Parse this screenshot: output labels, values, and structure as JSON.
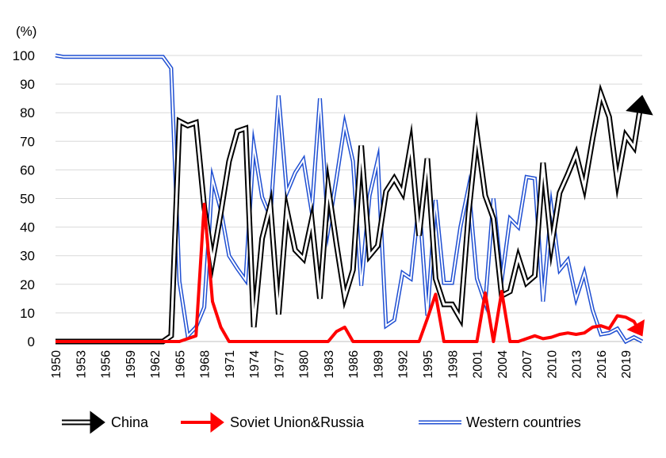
{
  "chart_data": {
    "type": "line",
    "unit_label": "(%)",
    "ylim": [
      0,
      100
    ],
    "y_ticks": [
      0,
      10,
      20,
      30,
      40,
      50,
      60,
      70,
      80,
      90,
      100
    ],
    "x_tick_labels": [
      "1950",
      "1953",
      "1956",
      "1959",
      "1962",
      "1965",
      "1968",
      "1971",
      "1974",
      "1977",
      "1980",
      "1983",
      "1986",
      "1989",
      "1992",
      "1995",
      "1998",
      "2001",
      "2004",
      "2007",
      "2010",
      "2013",
      "2016",
      "2019"
    ],
    "grid": true,
    "legend_position": "bottom",
    "x": [
      1950,
      1951,
      1952,
      1953,
      1954,
      1955,
      1956,
      1957,
      1958,
      1959,
      1960,
      1961,
      1962,
      1963,
      1964,
      1965,
      1966,
      1967,
      1968,
      1969,
      1970,
      1971,
      1972,
      1973,
      1974,
      1975,
      1976,
      1977,
      1978,
      1979,
      1980,
      1981,
      1982,
      1983,
      1984,
      1985,
      1986,
      1987,
      1988,
      1989,
      1990,
      1991,
      1992,
      1993,
      1994,
      1995,
      1996,
      1997,
      1998,
      1999,
      2000,
      2001,
      2002,
      2003,
      2004,
      2005,
      2006,
      2007,
      2008,
      2009,
      2010,
      2011,
      2012,
      2013,
      2014,
      2015,
      2016,
      2017,
      2018,
      2019,
      2020,
      2021
    ],
    "series": [
      {
        "name": "China",
        "color": "#000000",
        "style": "outline",
        "end_marker": "arrow",
        "values": [
          0,
          0,
          0,
          0,
          0,
          0,
          0,
          0,
          0,
          0,
          0,
          0,
          0,
          0,
          2,
          77,
          75.5,
          76.5,
          47,
          28,
          45,
          63,
          73.5,
          74.5,
          5,
          36,
          47.5,
          9.5,
          46,
          32,
          29,
          42.5,
          15,
          54,
          34,
          15.5,
          25,
          68.5,
          30,
          33.5,
          52.5,
          57,
          52,
          69,
          37,
          64,
          22,
          13,
          13,
          8,
          45,
          72.5,
          51,
          43,
          16,
          17.5,
          29.5,
          20.5,
          23,
          62.5,
          33.5,
          52,
          58.5,
          65.5,
          54,
          71,
          86.5,
          78.5,
          56,
          72,
          68,
          86
        ]
      },
      {
        "name": "Soviet Union&Russia",
        "color": "#ff0000",
        "style": "solid",
        "end_marker": "arrow",
        "values": [
          0,
          0,
          0,
          0,
          0,
          0,
          0,
          0,
          0,
          0,
          0,
          0,
          0,
          0,
          0,
          0,
          1,
          2,
          48,
          14,
          5,
          0,
          0,
          0,
          0,
          0,
          0,
          0,
          0,
          0,
          0,
          0,
          0,
          0,
          3.5,
          5,
          0,
          0,
          0,
          0,
          0,
          0,
          0,
          0,
          0,
          8,
          16.5,
          0,
          0,
          0,
          0,
          0,
          17,
          0,
          17.5,
          0,
          0,
          1,
          2,
          1,
          1.5,
          2.5,
          3,
          2.5,
          3,
          5,
          5.5,
          4.5,
          9,
          8.5,
          7,
          2
        ]
      },
      {
        "name": "Western countries",
        "color": "#1f4fd2",
        "style": "outline",
        "end_marker": "none",
        "values": [
          100,
          99.5,
          99.5,
          99.5,
          99.5,
          99.5,
          99.5,
          99.5,
          99.5,
          99.5,
          99.5,
          99.5,
          99.5,
          99.5,
          95.5,
          21,
          2,
          5,
          12,
          57,
          46,
          30,
          25.5,
          21.5,
          68.5,
          50.5,
          43.5,
          86,
          52,
          59,
          63.5,
          45.5,
          85,
          39,
          57,
          76,
          63,
          19.5,
          51,
          63.5,
          5.5,
          7.5,
          24,
          22,
          49,
          9,
          49.5,
          20.5,
          20.5,
          40,
          54,
          22,
          13.5,
          50,
          21.5,
          43,
          40,
          57.5,
          57,
          14,
          47,
          25,
          28.5,
          15,
          24,
          11,
          2.5,
          3,
          4.5,
          0,
          1.5,
          0
        ]
      }
    ]
  }
}
